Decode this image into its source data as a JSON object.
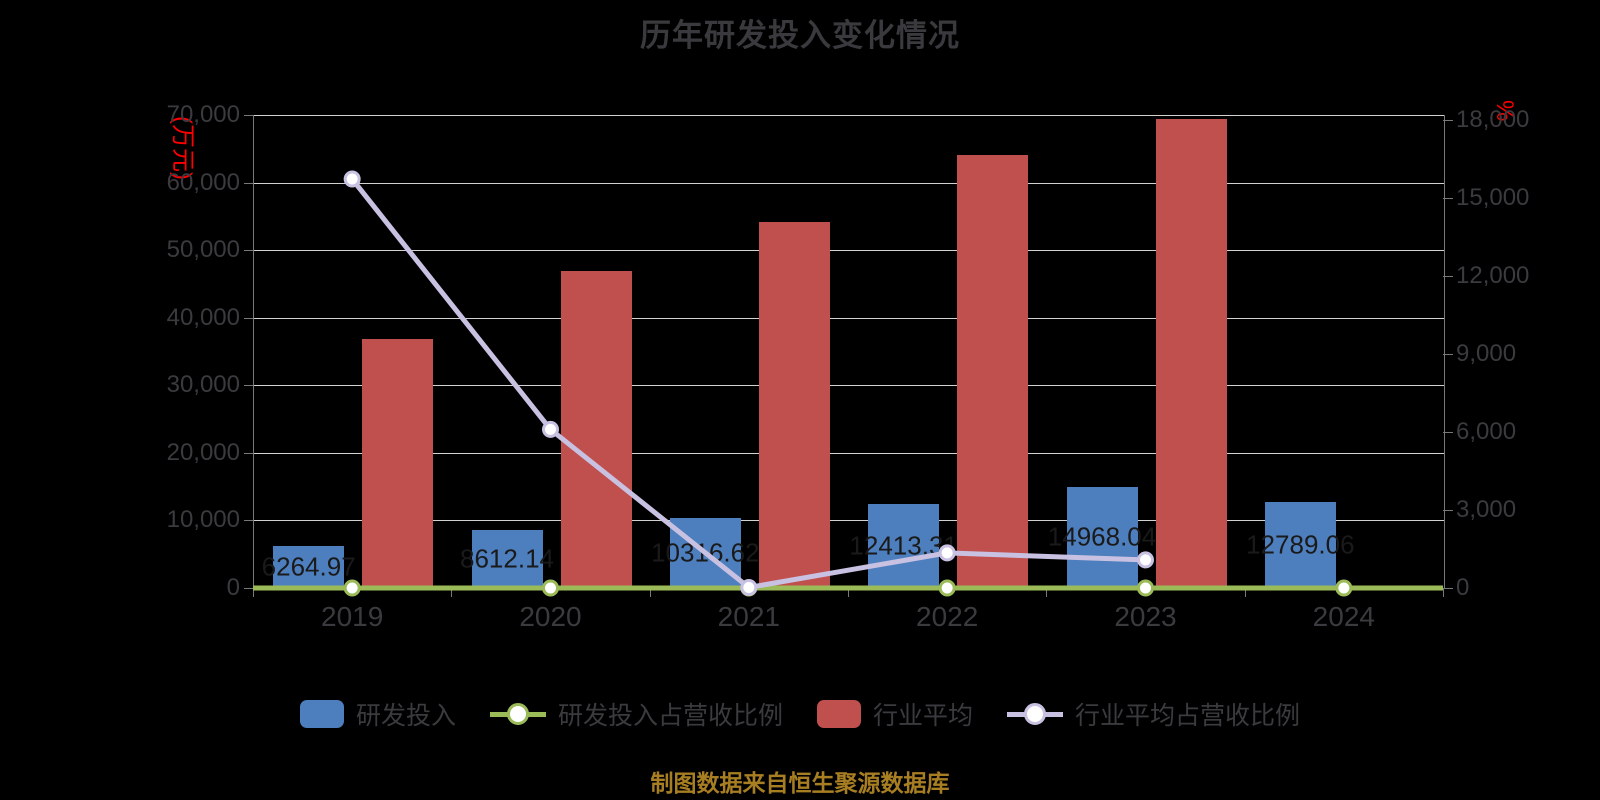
{
  "chart_data": {
    "type": "bar",
    "subtype": "combo-bar-line-dual-axis",
    "title": "历年研发投入变化情况",
    "source_note": "制图数据来自恒生聚源数据库",
    "categories": [
      "2019",
      "2020",
      "2021",
      "2022",
      "2023",
      "2024"
    ],
    "left_axis": {
      "unit": "(万元)",
      "min": 0,
      "max": 70000,
      "step": 10000,
      "tick_labels": [
        "0",
        "10,000",
        "20,000",
        "30,000",
        "40,000",
        "50,000",
        "60,000",
        "70,000"
      ]
    },
    "right_axis": {
      "unit": "%",
      "min": 0,
      "max": 18000,
      "step": 3000,
      "tick_labels": [
        "0",
        "3,000",
        "6,000",
        "9,000",
        "12,000",
        "15,000",
        "18,000"
      ]
    },
    "grid": true,
    "legend_position": "bottom",
    "series": [
      {
        "name": "研发投入",
        "type": "bar",
        "axis": "left",
        "color": "#4d7ebd",
        "values": [
          6264.97,
          8612.14,
          10316.62,
          12413.31,
          14968.04,
          12789.06
        ],
        "data_labels": [
          "6264.97",
          "8612.14",
          "10316.62",
          "12413.31",
          "14968.04",
          "12789.06"
        ]
      },
      {
        "name": "研发投入占营收比例",
        "type": "line",
        "axis": "right",
        "color": "#9bbb59",
        "marker_fill": "#ffffff",
        "values": [
          0,
          0,
          0,
          0,
          0,
          0
        ]
      },
      {
        "name": "行业平均",
        "type": "bar",
        "axis": "left",
        "color": "#c0504d",
        "values": [
          36850,
          46900,
          54150,
          64100,
          69400,
          null
        ]
      },
      {
        "name": "行业平均占营收比例",
        "type": "line",
        "axis": "right",
        "color": "#c8c1e1",
        "marker_fill": "#ffffff",
        "values": [
          15730,
          6100,
          20,
          1350,
          1080,
          null
        ]
      }
    ],
    "colors": {
      "background": "#000000",
      "title_text": "#3a3a3e",
      "axis_text": "#3b3b3f",
      "gridline": "#d2d2d2",
      "axis_line": "#787878",
      "unit_text": "#ff0000",
      "data_label_text": "#1a1a1a",
      "source_note_text": "#a87e23"
    }
  }
}
